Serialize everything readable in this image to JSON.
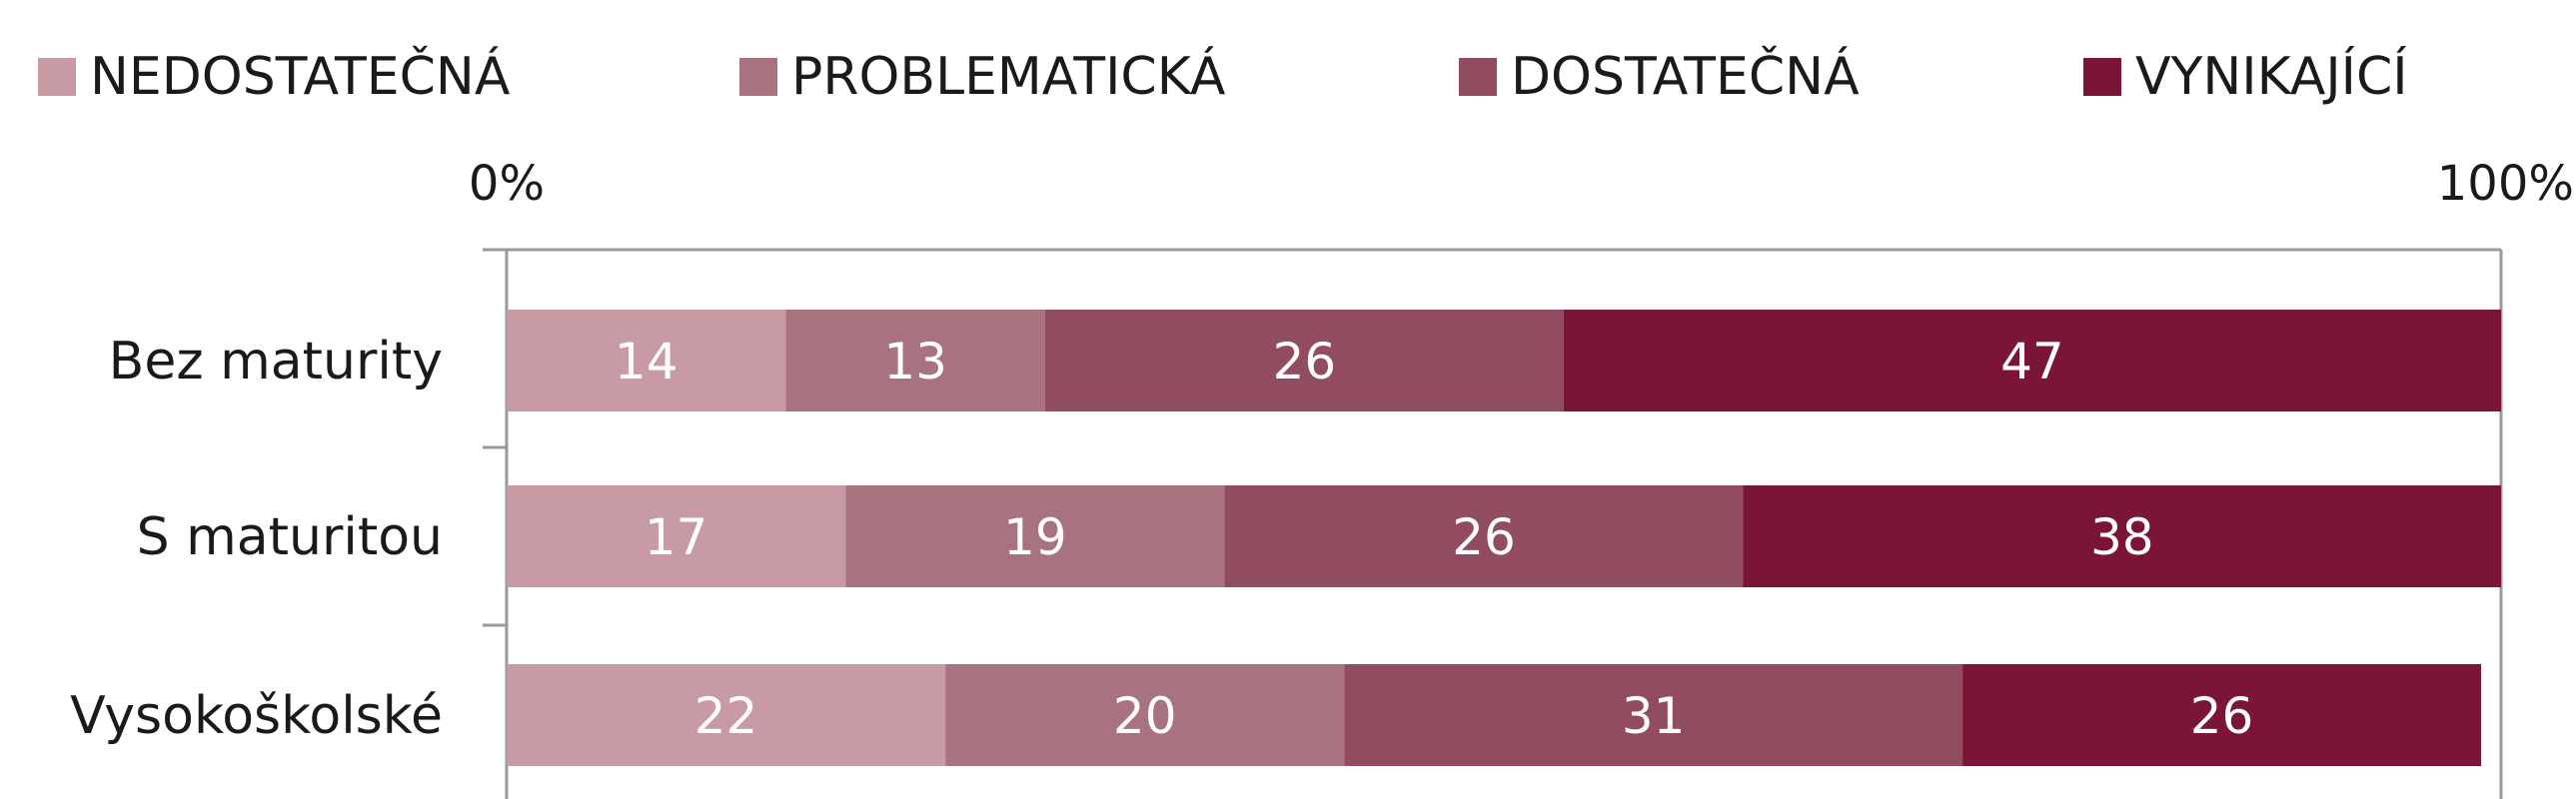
{
  "chart_data": {
    "type": "bar",
    "orientation": "horizontal",
    "stacked": true,
    "title": "",
    "xlabel": "",
    "ylabel": "",
    "xlim": [
      0,
      100
    ],
    "tick_labels": [
      "0%",
      "100%"
    ],
    "legend_position": "top",
    "grid": false,
    "categories": [
      "Bez maturity",
      "S maturitou",
      "Vysokoškolské"
    ],
    "series": [
      {
        "name": "NEDOSTATEČNÁ",
        "color": "#c89aa3",
        "values": [
          14,
          17,
          22
        ],
        "labels": [
          "14",
          "17",
          "22"
        ]
      },
      {
        "name": "PROBLEMATICKÁ",
        "color": "#a8727f",
        "values": [
          13,
          19,
          20
        ],
        "labels": [
          "13",
          "19",
          "20"
        ]
      },
      {
        "name": "DOSTATEČNÁ",
        "color": "#924c60",
        "values": [
          26,
          26,
          31
        ],
        "labels": [
          "26",
          "26",
          "31"
        ]
      },
      {
        "name": "VYNIKAJÍCÍ",
        "color": "#7b1535",
        "values": [
          47,
          38,
          26
        ],
        "labels": [
          "47",
          "38",
          "26"
        ]
      }
    ]
  }
}
